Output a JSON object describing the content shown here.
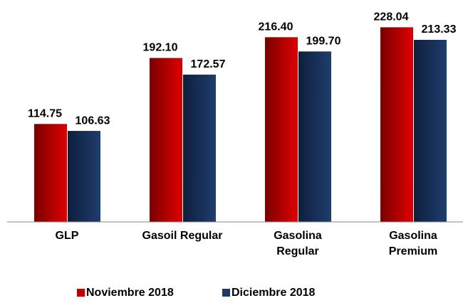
{
  "chart_data": {
    "type": "bar",
    "categories": [
      "GLP",
      "Gasoil Regular",
      "Gasolina\nRegular",
      "Gasolina\nPremium"
    ],
    "series": [
      {
        "name": "Noviembre 2018",
        "color": "#c00000",
        "values": [
          114.75,
          192.1,
          216.4,
          228.04
        ],
        "value_labels": [
          "114.75",
          "192.10",
          "216.40",
          "228.04"
        ]
      },
      {
        "name": "Diciembre 2018",
        "color": "#1f3864",
        "values": [
          106.63,
          172.57,
          199.7,
          213.33
        ],
        "value_labels": [
          "106.63",
          "172.57",
          "199.70",
          "213.33"
        ]
      }
    ],
    "ylim": [
      0,
      250
    ],
    "grid": false,
    "legend": "bottom"
  }
}
